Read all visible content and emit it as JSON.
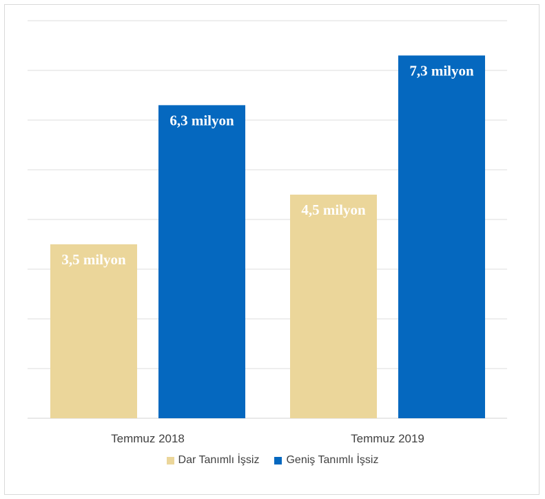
{
  "chart_data": {
    "type": "bar",
    "categories": [
      "Temmuz 2018",
      "Temmuz 2019"
    ],
    "series": [
      {
        "name": "Dar Tanımlı İşsiz",
        "values": [
          3.5,
          4.5
        ],
        "color": "#ebd69a",
        "labels": [
          "3,5 milyon",
          "4,5 milyon"
        ]
      },
      {
        "name": "Geniş Tanımlı İşsiz",
        "values": [
          6.3,
          7.3
        ],
        "color": "#0568bf",
        "labels": [
          "6,3 milyon",
          "7,3 milyon"
        ]
      }
    ],
    "ylim": [
      0,
      8
    ],
    "grid": true,
    "legend_position": "bottom"
  }
}
